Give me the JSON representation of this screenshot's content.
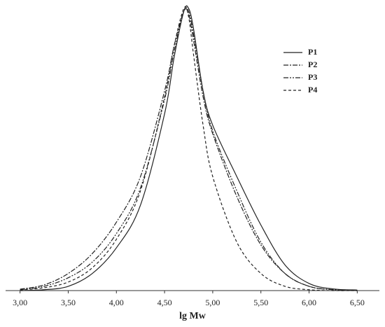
{
  "chart_data": {
    "type": "line",
    "x_label": "lg Mw",
    "x": [
      3.0,
      3.25,
      3.5,
      3.75,
      4.0,
      4.25,
      4.5,
      4.6,
      4.7,
      4.75,
      4.8,
      4.9,
      5.0,
      5.25,
      5.5,
      5.75,
      6.0,
      6.25,
      6.5
    ],
    "series": [
      {
        "name": "P1",
        "color": "#222222",
        "dash": "none",
        "values": [
          0,
          0.003,
          0.015,
          0.06,
          0.15,
          0.3,
          0.62,
          0.82,
          0.98,
          0.99,
          0.92,
          0.7,
          0.58,
          0.4,
          0.23,
          0.09,
          0.025,
          0.006,
          0.002
        ]
      },
      {
        "name": "P2",
        "color": "#222222",
        "dash": "7,2,2,2",
        "values": [
          0.005,
          0.02,
          0.06,
          0.13,
          0.24,
          0.4,
          0.7,
          0.86,
          0.98,
          0.97,
          0.88,
          0.68,
          0.55,
          0.33,
          0.16,
          0.06,
          0.015,
          0.003,
          0
        ]
      },
      {
        "name": "P3",
        "color": "#222222",
        "dash": "7,2,2,2,2,2",
        "values": [
          0.003,
          0.015,
          0.045,
          0.1,
          0.2,
          0.36,
          0.67,
          0.84,
          0.98,
          0.98,
          0.9,
          0.7,
          0.56,
          0.35,
          0.17,
          0.06,
          0.015,
          0.003,
          0
        ]
      },
      {
        "name": "P4",
        "color": "#222222",
        "dash": "4,3",
        "values": [
          0.002,
          0.01,
          0.03,
          0.08,
          0.18,
          0.35,
          0.68,
          0.86,
          0.99,
          0.96,
          0.83,
          0.58,
          0.4,
          0.17,
          0.06,
          0.015,
          0.003,
          0,
          0
        ]
      }
    ],
    "xlim": [
      2.85,
      6.73
    ],
    "ylim": [
      0,
      1
    ],
    "xticks": [
      {
        "value": 3,
        "label": "3,00"
      },
      {
        "value": 3.5,
        "label": "3,50"
      },
      {
        "value": 4,
        "label": "4,00"
      },
      {
        "value": 4.5,
        "label": "4,50"
      },
      {
        "value": 5,
        "label": "5,00"
      },
      {
        "value": 5.5,
        "label": "5,50"
      },
      {
        "value": 6,
        "label": "6,00"
      },
      {
        "value": 6.5,
        "label": "6,50"
      }
    ],
    "legend": "top-right"
  }
}
